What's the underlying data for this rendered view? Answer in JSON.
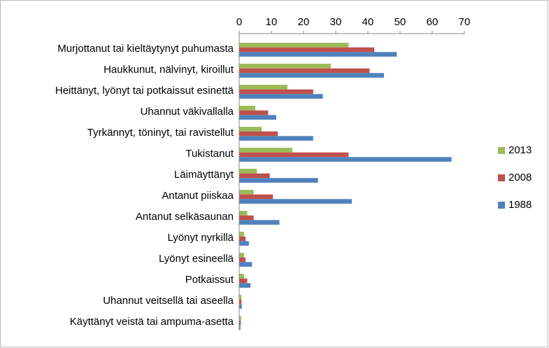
{
  "chart_data": {
    "type": "hbar",
    "categories": [
      "Murjottanut tai kieltäytynyt puhumasta",
      "Haukkunut, nälvinyt, kiroillut",
      "Heittänyt, lyönyt tai potkaissut esinettä",
      "Uhannut väkivallalla",
      "Tyrkännyt, töninyt, tai ravistellut",
      "Tukistanut",
      "Läimäyttänyt",
      "Antanut piiskaa",
      "Antanut selkäsaunan",
      "Lyönyt nyrkillä",
      "Lyönyt esineellä",
      "Potkaissut",
      "Uhannut veitsellä tai aseella",
      "Käyttänyt veistä tai ampuma-asetta"
    ],
    "series": [
      {
        "name": "2013",
        "color": "#9bbb59",
        "values": [
          34,
          28.5,
          15,
          5,
          7,
          16.5,
          5.5,
          4.5,
          2.5,
          1.5,
          1.5,
          1.5,
          0.7,
          0.6
        ]
      },
      {
        "name": "2008",
        "color": "#c0504d",
        "values": [
          42,
          40.5,
          23,
          9,
          12,
          34,
          9.5,
          10.5,
          4.5,
          2,
          2,
          2.5,
          0.7,
          0.5
        ]
      },
      {
        "name": "1988",
        "color": "#4f81bd",
        "values": [
          49,
          45,
          26,
          11.5,
          23,
          66,
          24.5,
          35,
          12.5,
          3,
          4,
          3.5,
          0.8,
          0.4
        ]
      }
    ],
    "xlim": [
      0,
      70
    ],
    "xticks": [
      0,
      10,
      20,
      30,
      40,
      50,
      60,
      70
    ],
    "legend": "right"
  }
}
